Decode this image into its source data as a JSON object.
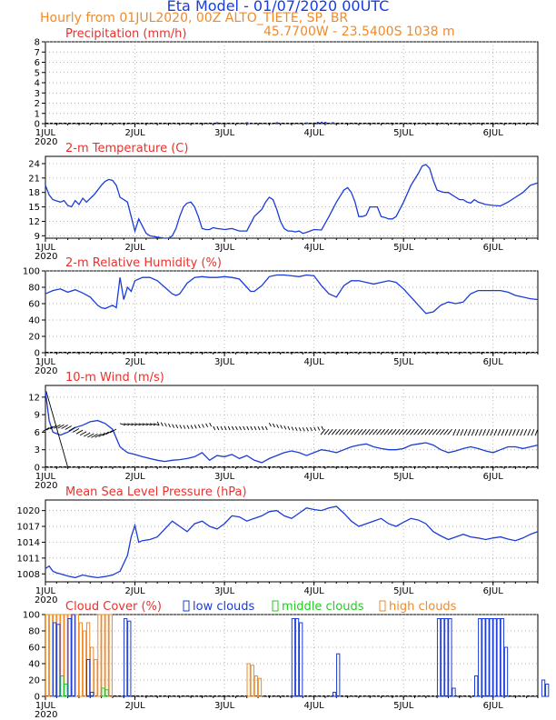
{
  "header": {
    "title": "Eta Model - 01/07/2020 00UTC",
    "subtitle_left": "Hourly from 01JUL2020, 00Z  ALTO_TIETE, SP, BR",
    "subtitle_coords": "45.7700W - 23.5400S    1038  m"
  },
  "colors": {
    "series": "#1a3cd8",
    "title": "#e8322e",
    "high": "#f08a2a",
    "middle": "#22cc22",
    "low": "#1a3cd8",
    "grid": "#9a9a9a"
  },
  "chart_data": [
    {
      "id": "precip",
      "type": "bar",
      "title": "Precipitation (mm/h)",
      "ylim": [
        0,
        8
      ],
      "yticks": [
        0,
        1,
        2,
        3,
        4,
        5,
        6,
        7,
        8
      ],
      "x_hours_range": [
        0,
        132
      ],
      "xticks": [
        "1JUL",
        "2JUL",
        "3JUL",
        "4JUL",
        "5JUL",
        "6JUL"
      ],
      "x_year_label": "2020",
      "bars": [
        [
          46,
          0.05
        ],
        [
          54,
          0.05
        ],
        [
          62,
          0.05
        ],
        [
          70,
          0.03
        ],
        [
          73,
          0.08
        ],
        [
          74,
          0.1
        ],
        [
          75,
          0.08
        ],
        [
          77,
          0.05
        ]
      ]
    },
    {
      "id": "temp",
      "type": "line",
      "title": "2-m Temperature (C)",
      "ylim": [
        8.5,
        25.5
      ],
      "yticks": [
        9,
        12,
        15,
        18,
        21,
        24
      ],
      "xticks": [
        "1JUL",
        "2JUL",
        "3JUL",
        "4JUL",
        "5JUL",
        "6JUL"
      ],
      "x_year_label": "2020",
      "x_hours": [
        0,
        1,
        2,
        4,
        5,
        6,
        7,
        8,
        9,
        10,
        11,
        13,
        15,
        16,
        17,
        18,
        19,
        20,
        21,
        22,
        23,
        24,
        25,
        26,
        27,
        28,
        30,
        32,
        33,
        34,
        35,
        36,
        37,
        38,
        39,
        40,
        41,
        42,
        43,
        44,
        45,
        46,
        47,
        48,
        50,
        52,
        54,
        56,
        58,
        59,
        60,
        61,
        62,
        63,
        64,
        65,
        66,
        67,
        68,
        69,
        70,
        72,
        74,
        76,
        78,
        80,
        81,
        82,
        83,
        84,
        85,
        86,
        87,
        88,
        89,
        90,
        91,
        92,
        93,
        94,
        96,
        98,
        100,
        101,
        102,
        103,
        104,
        105,
        106,
        107,
        108,
        109,
        110,
        111,
        112,
        113,
        114,
        115,
        116,
        118,
        120,
        122,
        124,
        126,
        128,
        130,
        132
      ],
      "values": [
        19.5,
        17.5,
        16.5,
        16.0,
        16.3,
        15.3,
        15.0,
        16.3,
        15.5,
        16.8,
        16.0,
        17.5,
        19.5,
        20.3,
        20.7,
        20.5,
        19.5,
        17.0,
        16.5,
        16.0,
        13.0,
        10.0,
        12.5,
        11.0,
        9.5,
        9.0,
        8.7,
        8.5,
        8.5,
        9.0,
        10.5,
        13.0,
        15.0,
        15.8,
        16.0,
        15.0,
        13.0,
        10.5,
        10.3,
        10.3,
        10.7,
        10.5,
        10.4,
        10.3,
        10.5,
        10.0,
        10.0,
        13.0,
        14.5,
        16.0,
        17.0,
        16.5,
        14.5,
        12.0,
        10.5,
        10.0,
        10.0,
        9.8,
        10.0,
        9.5,
        9.7,
        10.3,
        10.2,
        13.0,
        16.0,
        18.5,
        19.0,
        18.0,
        16.0,
        13.0,
        13.0,
        13.3,
        15.0,
        15.0,
        15.0,
        13.0,
        12.8,
        12.5,
        12.5,
        13.0,
        16.0,
        19.5,
        22.0,
        23.5,
        23.8,
        23.0,
        20.5,
        18.5,
        18.2,
        18.0,
        18.0,
        17.5,
        17.0,
        16.5,
        16.5,
        16.0,
        15.8,
        16.5,
        16.0,
        15.5,
        15.3,
        15.2,
        16.0,
        17.0,
        18.0,
        19.5,
        20.0
      ]
    },
    {
      "id": "rh",
      "type": "line",
      "title": "2-m Relative Humidity (%)",
      "ylim": [
        0,
        100
      ],
      "yticks": [
        0,
        20,
        40,
        60,
        80,
        100
      ],
      "xticks": [
        "1JUL",
        "2JUL",
        "3JUL",
        "4JUL",
        "5JUL",
        "6JUL"
      ],
      "x_year_label": "2020",
      "x_hours": [
        0,
        2,
        4,
        6,
        8,
        10,
        12,
        14,
        15,
        16,
        18,
        19,
        20,
        21,
        22,
        23,
        24,
        26,
        28,
        30,
        32,
        34,
        35,
        36,
        38,
        40,
        42,
        44,
        46,
        48,
        50,
        52,
        54,
        55,
        56,
        58,
        60,
        62,
        64,
        66,
        68,
        70,
        72,
        74,
        76,
        78,
        80,
        82,
        84,
        86,
        88,
        90,
        92,
        94,
        96,
        98,
        100,
        102,
        104,
        106,
        108,
        110,
        112,
        114,
        116,
        118,
        120,
        122,
        124,
        126,
        128,
        130,
        132
      ],
      "values": [
        72,
        76,
        78,
        74,
        77,
        73,
        68,
        58,
        55,
        54,
        58,
        55,
        92,
        65,
        80,
        75,
        88,
        92,
        92,
        88,
        80,
        72,
        70,
        72,
        85,
        92,
        93,
        92,
        92,
        93,
        92,
        90,
        80,
        75,
        75,
        82,
        93,
        95,
        95,
        94,
        93,
        95,
        94,
        82,
        72,
        68,
        82,
        88,
        88,
        86,
        84,
        86,
        88,
        86,
        78,
        68,
        58,
        48,
        50,
        58,
        62,
        60,
        62,
        72,
        76,
        76,
        76,
        76,
        74,
        70,
        68,
        66,
        65
      ]
    },
    {
      "id": "wind",
      "type": "line",
      "title": "10-m Wind (m/s)",
      "ylim": [
        0,
        14
      ],
      "yticks": [
        0,
        3,
        6,
        9,
        12
      ],
      "xticks": [
        "1JUL",
        "2JUL",
        "3JUL",
        "4JUL",
        "5JUL",
        "6JUL"
      ],
      "x_year_label": "2020",
      "x_hours": [
        0,
        1,
        2,
        4,
        6,
        8,
        10,
        12,
        14,
        16,
        18,
        19,
        20,
        21,
        22,
        24,
        26,
        28,
        30,
        32,
        34,
        36,
        38,
        40,
        42,
        44,
        46,
        48,
        50,
        52,
        54,
        56,
        58,
        60,
        62,
        64,
        66,
        68,
        70,
        72,
        74,
        76,
        78,
        80,
        82,
        84,
        86,
        88,
        90,
        92,
        94,
        96,
        98,
        100,
        102,
        104,
        106,
        108,
        110,
        112,
        114,
        116,
        118,
        120,
        122,
        124,
        126,
        128,
        130,
        132
      ],
      "values": [
        13.0,
        8.0,
        6.0,
        5.5,
        6.0,
        6.8,
        7.2,
        7.8,
        8.0,
        7.5,
        6.5,
        5.0,
        3.5,
        3.0,
        2.5,
        2.2,
        1.8,
        1.5,
        1.2,
        1.0,
        1.2,
        1.3,
        1.5,
        1.8,
        2.5,
        1.2,
        2.0,
        1.8,
        2.2,
        1.5,
        2.0,
        1.2,
        0.8,
        1.5,
        2.0,
        2.5,
        2.8,
        2.5,
        2.0,
        2.5,
        3.0,
        2.8,
        2.5,
        3.0,
        3.5,
        3.8,
        4.0,
        3.5,
        3.2,
        3.0,
        3.0,
        3.2,
        3.8,
        4.0,
        4.2,
        3.8,
        3.0,
        2.5,
        2.8,
        3.2,
        3.5,
        3.2,
        2.8,
        2.5,
        3.0,
        3.5,
        3.5,
        3.2,
        3.5,
        3.8
      ],
      "barbs": "wind direction vectors along ~6-8 m/s band"
    },
    {
      "id": "mslp",
      "type": "line",
      "title": "Mean Sea Level Pressure (hPa)",
      "ylim": [
        1006.5,
        1022
      ],
      "yticks": [
        1008,
        1011,
        1014,
        1017,
        1020
      ],
      "xticks": [
        "1JUL",
        "2JUL",
        "3JUL",
        "4JUL",
        "5JUL",
        "6JUL"
      ],
      "x_year_label": "2020",
      "x_hours": [
        0,
        1,
        2,
        3,
        4,
        6,
        8,
        10,
        12,
        14,
        16,
        18,
        20,
        22,
        23,
        24,
        25,
        26,
        28,
        30,
        32,
        34,
        36,
        38,
        40,
        42,
        44,
        46,
        48,
        50,
        52,
        54,
        56,
        58,
        60,
        62,
        64,
        66,
        68,
        70,
        72,
        74,
        76,
        78,
        80,
        82,
        84,
        86,
        88,
        90,
        92,
        94,
        96,
        98,
        100,
        102,
        104,
        106,
        108,
        110,
        112,
        114,
        116,
        118,
        120,
        122,
        124,
        126,
        128,
        130,
        132
      ],
      "values": [
        1009.0,
        1009.5,
        1008.5,
        1008.2,
        1008.0,
        1007.6,
        1007.3,
        1007.8,
        1007.5,
        1007.3,
        1007.5,
        1007.8,
        1008.5,
        1011.5,
        1015.0,
        1017.2,
        1014.0,
        1014.3,
        1014.5,
        1015.0,
        1016.5,
        1018.0,
        1017.0,
        1016.0,
        1017.5,
        1018.0,
        1017.0,
        1016.5,
        1017.5,
        1019.0,
        1018.8,
        1018.0,
        1018.5,
        1019.0,
        1019.8,
        1020.0,
        1019.0,
        1018.5,
        1019.5,
        1020.5,
        1020.2,
        1020.0,
        1020.5,
        1020.8,
        1019.5,
        1018.0,
        1017.0,
        1017.5,
        1018.0,
        1018.5,
        1017.5,
        1017.0,
        1017.8,
        1018.5,
        1018.2,
        1017.5,
        1016.0,
        1015.2,
        1014.5,
        1015.0,
        1015.5,
        1015.0,
        1014.8,
        1014.5,
        1014.8,
        1015.0,
        1014.6,
        1014.3,
        1014.8,
        1015.5,
        1016.0
      ]
    },
    {
      "id": "cloud",
      "type": "bar",
      "title": "Cloud Cover (%)",
      "ylim": [
        0,
        100
      ],
      "yticks": [
        0,
        20,
        40,
        60,
        80,
        100
      ],
      "xticks": [
        "1JUL",
        "2JUL",
        "3JUL",
        "4JUL",
        "5JUL",
        "6JUL"
      ],
      "x_year_label": "2020",
      "legend": [
        "low clouds",
        "middle clouds",
        "high clouds"
      ],
      "high_bars": [
        [
          0,
          100
        ],
        [
          1,
          100
        ],
        [
          2,
          100
        ],
        [
          3,
          100
        ],
        [
          4,
          100
        ],
        [
          5,
          100
        ],
        [
          6,
          100
        ],
        [
          7,
          100
        ],
        [
          8,
          100
        ],
        [
          9,
          90
        ],
        [
          10,
          80
        ],
        [
          11,
          90
        ],
        [
          12,
          60
        ],
        [
          13,
          45
        ],
        [
          14,
          100
        ],
        [
          15,
          100
        ],
        [
          16,
          100
        ],
        [
          17,
          100
        ],
        [
          54,
          40
        ],
        [
          55,
          38
        ],
        [
          56,
          25
        ],
        [
          57,
          22
        ]
      ],
      "middle_bars": [
        [
          4,
          25
        ],
        [
          5,
          15
        ],
        [
          15,
          10
        ],
        [
          16,
          8
        ]
      ],
      "low_bars": [
        [
          2,
          90
        ],
        [
          3,
          88
        ],
        [
          6,
          95
        ],
        [
          7,
          100
        ],
        [
          11,
          45
        ],
        [
          12,
          5
        ],
        [
          21,
          95
        ],
        [
          22,
          92
        ],
        [
          53,
          0
        ],
        [
          58,
          0
        ],
        [
          66,
          95
        ],
        [
          67,
          95
        ],
        [
          68,
          90
        ],
        [
          77,
          5
        ],
        [
          78,
          52
        ],
        [
          105,
          95
        ],
        [
          106,
          95
        ],
        [
          107,
          95
        ],
        [
          108,
          95
        ],
        [
          109,
          10
        ],
        [
          115,
          25
        ],
        [
          116,
          95
        ],
        [
          117,
          95
        ],
        [
          118,
          95
        ],
        [
          119,
          95
        ],
        [
          120,
          95
        ],
        [
          121,
          95
        ],
        [
          122,
          95
        ],
        [
          123,
          60
        ],
        [
          133,
          20
        ],
        [
          134,
          15
        ]
      ]
    }
  ]
}
